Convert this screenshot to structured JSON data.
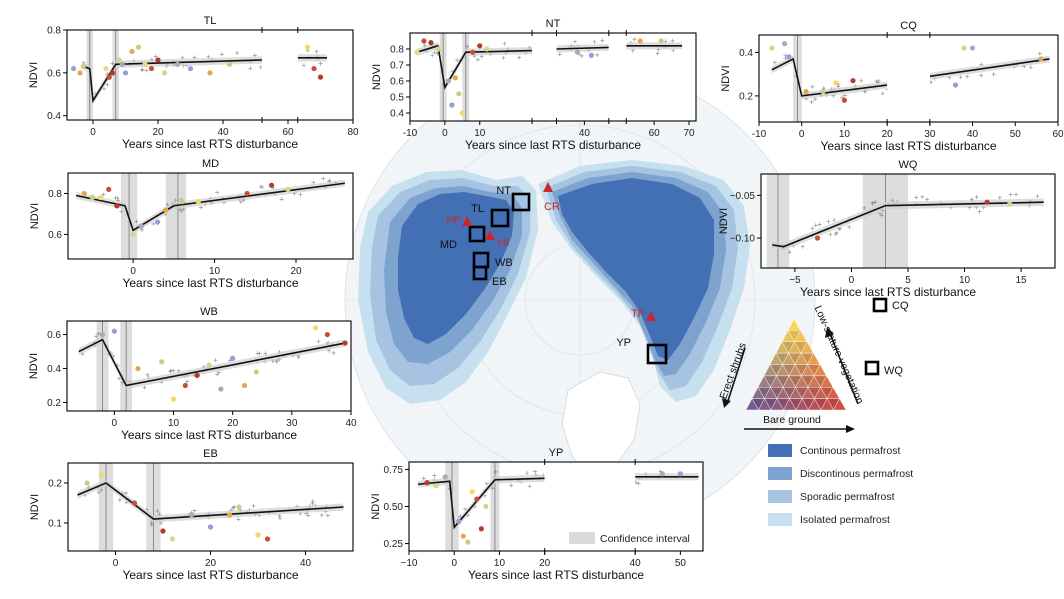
{
  "colors": {
    "continuous": "#4370b5",
    "discontinuous": "#7ea3cf",
    "sporadic": "#a6c4e2",
    "isolated": "#c6e0ef",
    "site_label": "#c8282d",
    "ci": "#d9d9d9"
  },
  "labels": {
    "xlabel": "Years since last RTS disturbance",
    "ylabel": "NDVI"
  },
  "map": {
    "sites_black": [
      "NT",
      "TL",
      "MD",
      "WB",
      "EB",
      "YP",
      "CQ",
      "WQ"
    ],
    "sites_red": [
      "PP",
      "HI",
      "CR",
      "TP"
    ]
  },
  "legend": {
    "continuous": "Continous permafrost",
    "discontinuous": "Discontinous permafrost",
    "sporadic": "Sporadic permafrost",
    "isolated": "Isolated permafrost"
  },
  "ternary": {
    "left_axis": "Erect shrubs",
    "right_axis": "Low-stature vegetation",
    "bottom_axis": "Bare ground"
  },
  "ci_legend": "Confidence interval",
  "chart_data": [
    {
      "type": "line",
      "title": "TL",
      "xlabel": "Years since last RTS disturbance",
      "ylabel": "NDVI",
      "xticks": [
        0,
        20,
        40,
        60,
        80
      ],
      "yticks": [
        "0.4",
        "0.6",
        "0.8"
      ],
      "xlim": [
        -8,
        80
      ],
      "ylim": [
        0.38,
        0.8
      ],
      "breaks": [
        [
          52,
          63
        ]
      ],
      "vlines": [
        -1,
        7
      ],
      "ci_bands": [
        [
          -2,
          0
        ],
        [
          6,
          8
        ]
      ],
      "fit": [
        [
          -3,
          0.63
        ],
        [
          -1,
          0.62
        ],
        [
          0,
          0.47
        ],
        [
          7,
          0.64
        ],
        [
          52,
          0.66
        ],
        [
          63,
          0.67
        ],
        [
          72,
          0.67
        ]
      ],
      "points": [
        [
          -6,
          0.62
        ],
        [
          -4,
          0.6
        ],
        [
          -3,
          0.63
        ],
        [
          4,
          0.62
        ],
        [
          5,
          0.58
        ],
        [
          6,
          0.6
        ],
        [
          8,
          0.66
        ],
        [
          9,
          0.64
        ],
        [
          10,
          0.6
        ],
        [
          12,
          0.7
        ],
        [
          14,
          0.72
        ],
        [
          16,
          0.64
        ],
        [
          18,
          0.62
        ],
        [
          20,
          0.66
        ],
        [
          22,
          0.6
        ],
        [
          26,
          0.64
        ],
        [
          30,
          0.62
        ],
        [
          36,
          0.6
        ],
        [
          42,
          0.64
        ],
        [
          66,
          0.72
        ],
        [
          68,
          0.62
        ],
        [
          70,
          0.58
        ]
      ]
    },
    {
      "type": "line",
      "title": "NT",
      "xlabel": "Years since last RTS disturbance",
      "ylabel": "NDVI",
      "xticks": [
        -10,
        0,
        10,
        40,
        60,
        70
      ],
      "yticks": [
        "0.4",
        "0.5",
        "0.6",
        "0.7",
        "0.8"
      ],
      "xlim": [
        -10,
        72
      ],
      "ylim": [
        0.35,
        0.9
      ],
      "breaks": [
        [
          25,
          32
        ],
        [
          47,
          52
        ]
      ],
      "vlines": [
        -0.5,
        6
      ],
      "ci_bands": [
        [
          -1.5,
          0.5
        ],
        [
          5,
          7
        ]
      ],
      "fit": [
        [
          -8,
          0.78
        ],
        [
          -2,
          0.82
        ],
        [
          0,
          0.56
        ],
        [
          6,
          0.78
        ],
        [
          25,
          0.79
        ],
        [
          32,
          0.8
        ],
        [
          47,
          0.81
        ],
        [
          52,
          0.82
        ],
        [
          68,
          0.82
        ]
      ],
      "points": [
        [
          -8,
          0.78
        ],
        [
          -6,
          0.85
        ],
        [
          -4,
          0.84
        ],
        [
          -2,
          0.8
        ],
        [
          1,
          0.6
        ],
        [
          2,
          0.45
        ],
        [
          3,
          0.62
        ],
        [
          4,
          0.52
        ],
        [
          5,
          0.4
        ],
        [
          8,
          0.78
        ],
        [
          10,
          0.82
        ],
        [
          12,
          0.8
        ],
        [
          38,
          0.78
        ],
        [
          42,
          0.76
        ],
        [
          56,
          0.85
        ],
        [
          62,
          0.85
        ]
      ]
    },
    {
      "type": "line",
      "title": "CQ",
      "xlabel": "Years since last RTS disturbance",
      "ylabel": "NDVI",
      "xticks": [
        -10,
        0,
        10,
        20,
        30,
        40,
        50,
        60
      ],
      "yticks": [
        "0.2",
        "0.4"
      ],
      "xlim": [
        -10,
        60
      ],
      "ylim": [
        0.08,
        0.48
      ],
      "breaks": [
        [
          20,
          30
        ]
      ],
      "vlines": [
        -1
      ],
      "ci_bands": [
        [
          -2,
          0
        ]
      ],
      "fit": [
        [
          -7,
          0.32
        ],
        [
          -2,
          0.37
        ],
        [
          0,
          0.2
        ],
        [
          20,
          0.25
        ],
        [
          30,
          0.29
        ],
        [
          58,
          0.37
        ]
      ],
      "points": [
        [
          -7,
          0.42
        ],
        [
          -4,
          0.44
        ],
        [
          -3,
          0.38
        ],
        [
          1,
          0.22
        ],
        [
          5,
          0.22
        ],
        [
          8,
          0.26
        ],
        [
          10,
          0.18
        ],
        [
          12,
          0.27
        ],
        [
          38,
          0.42
        ],
        [
          40,
          0.42
        ],
        [
          36,
          0.25
        ],
        [
          56,
          0.37
        ]
      ]
    },
    {
      "type": "line",
      "title": "MD",
      "xlabel": "Years since last RTS disturbance",
      "ylabel": "NDVI",
      "xticks": [
        0,
        10,
        20
      ],
      "yticks": [
        "0.6",
        "0.8"
      ],
      "xlim": [
        -8,
        27
      ],
      "ylim": [
        0.48,
        0.9
      ],
      "breaks": [],
      "vlines": [
        -0.5,
        5.5
      ],
      "ci_bands": [
        [
          -1.5,
          0.5
        ],
        [
          4,
          6.5
        ]
      ],
      "fit": [
        [
          -7,
          0.79
        ],
        [
          -1,
          0.74
        ],
        [
          0,
          0.62
        ],
        [
          5,
          0.74
        ],
        [
          26,
          0.85
        ]
      ],
      "points": [
        [
          -6,
          0.8
        ],
        [
          -5,
          0.78
        ],
        [
          -4,
          0.78
        ],
        [
          -3,
          0.82
        ],
        [
          -2,
          0.74
        ],
        [
          0,
          0.6
        ],
        [
          1,
          0.64
        ],
        [
          3,
          0.66
        ],
        [
          4,
          0.72
        ],
        [
          6,
          0.76
        ],
        [
          8,
          0.76
        ],
        [
          14,
          0.8
        ],
        [
          17,
          0.84
        ],
        [
          19,
          0.82
        ]
      ]
    },
    {
      "type": "line",
      "title": "WQ",
      "xlabel": "Years since last RTS disturbance",
      "ylabel": "NDVI",
      "xticks": [
        "−5",
        "0",
        "5",
        "10",
        "15"
      ],
      "yticks": [
        "−0.10",
        "−0.05"
      ],
      "xlim": [
        -8,
        18
      ],
      "ylim": [
        -0.135,
        -0.025
      ],
      "breaks": [],
      "vlines": [
        -6.5,
        3
      ],
      "ci_bands": [
        [
          -7.5,
          -5.5
        ],
        [
          1,
          5
        ]
      ],
      "fit": [
        [
          -7,
          -0.108
        ],
        [
          -6,
          -0.11
        ],
        [
          3,
          -0.062
        ],
        [
          17,
          -0.058
        ]
      ],
      "points": [
        [
          -3,
          -0.1
        ],
        [
          12,
          -0.058
        ],
        [
          14,
          -0.06
        ]
      ]
    },
    {
      "type": "line",
      "title": "WB",
      "xlabel": "Years since last RTS disturbance",
      "ylabel": "NDVI",
      "xticks": [
        0,
        10,
        20,
        30,
        40
      ],
      "yticks": [
        "0.2",
        "0.4",
        "0.6"
      ],
      "xlim": [
        -8,
        40
      ],
      "ylim": [
        0.15,
        0.68
      ],
      "breaks": [],
      "vlines": [
        -2,
        2
      ],
      "ci_bands": [
        [
          -3,
          -1
        ],
        [
          1,
          3
        ]
      ],
      "fit": [
        [
          -6,
          0.5
        ],
        [
          -2,
          0.57
        ],
        [
          2,
          0.3
        ],
        [
          39,
          0.55
        ]
      ],
      "points": [
        [
          -2,
          0.6
        ],
        [
          0,
          0.62
        ],
        [
          4,
          0.4
        ],
        [
          8,
          0.44
        ],
        [
          10,
          0.22
        ],
        [
          12,
          0.3
        ],
        [
          14,
          0.36
        ],
        [
          16,
          0.42
        ],
        [
          18,
          0.28
        ],
        [
          20,
          0.46
        ],
        [
          22,
          0.3
        ],
        [
          24,
          0.38
        ],
        [
          34,
          0.64
        ],
        [
          36,
          0.6
        ],
        [
          39,
          0.55
        ]
      ]
    },
    {
      "type": "line",
      "title": "EB",
      "xlabel": "Years since last RTS disturbance",
      "ylabel": "NDVI",
      "xticks": [
        0,
        20,
        40
      ],
      "yticks": [
        "0.1",
        "0.2"
      ],
      "xlim": [
        -10,
        50
      ],
      "ylim": [
        0.03,
        0.25
      ],
      "breaks": [],
      "vlines": [
        -2,
        8
      ],
      "ci_bands": [
        [
          -3.5,
          -0.5
        ],
        [
          6.5,
          9.5
        ]
      ],
      "fit": [
        [
          -8,
          0.17
        ],
        [
          -2,
          0.2
        ],
        [
          8,
          0.11
        ],
        [
          48,
          0.14
        ]
      ],
      "points": [
        [
          -6,
          0.2
        ],
        [
          -3,
          0.22
        ],
        [
          4,
          0.15
        ],
        [
          10,
          0.08
        ],
        [
          12,
          0.06
        ],
        [
          16,
          0.12
        ],
        [
          20,
          0.09
        ],
        [
          24,
          0.12
        ],
        [
          26,
          0.14
        ],
        [
          30,
          0.07
        ],
        [
          32,
          0.06
        ]
      ]
    },
    {
      "type": "line",
      "title": "YP",
      "xlabel": "Years since last RTS disturbance",
      "ylabel": "NDVI",
      "xticks": [
        "−10",
        "0",
        "10",
        "20",
        "40",
        "50"
      ],
      "yticks": [
        "0.25",
        "0.50",
        "0.75"
      ],
      "xlim": [
        -10,
        55
      ],
      "ylim": [
        0.2,
        0.8
      ],
      "breaks": [
        [
          20,
          40
        ]
      ],
      "vlines": [
        -0.5,
        9
      ],
      "ci_bands": [
        [
          -2,
          1
        ],
        [
          8,
          10
        ]
      ],
      "fit": [
        [
          -8,
          0.65
        ],
        [
          -1,
          0.67
        ],
        [
          0,
          0.36
        ],
        [
          9,
          0.68
        ],
        [
          20,
          0.69
        ],
        [
          40,
          0.7
        ],
        [
          54,
          0.7
        ]
      ],
      "points": [
        [
          -6,
          0.66
        ],
        [
          -4,
          0.64
        ],
        [
          -2,
          0.7
        ],
        [
          1,
          0.4
        ],
        [
          2,
          0.3
        ],
        [
          3,
          0.26
        ],
        [
          4,
          0.6
        ],
        [
          5,
          0.55
        ],
        [
          6,
          0.35
        ],
        [
          7,
          0.5
        ],
        [
          46,
          0.72
        ],
        [
          50,
          0.72
        ]
      ]
    }
  ]
}
